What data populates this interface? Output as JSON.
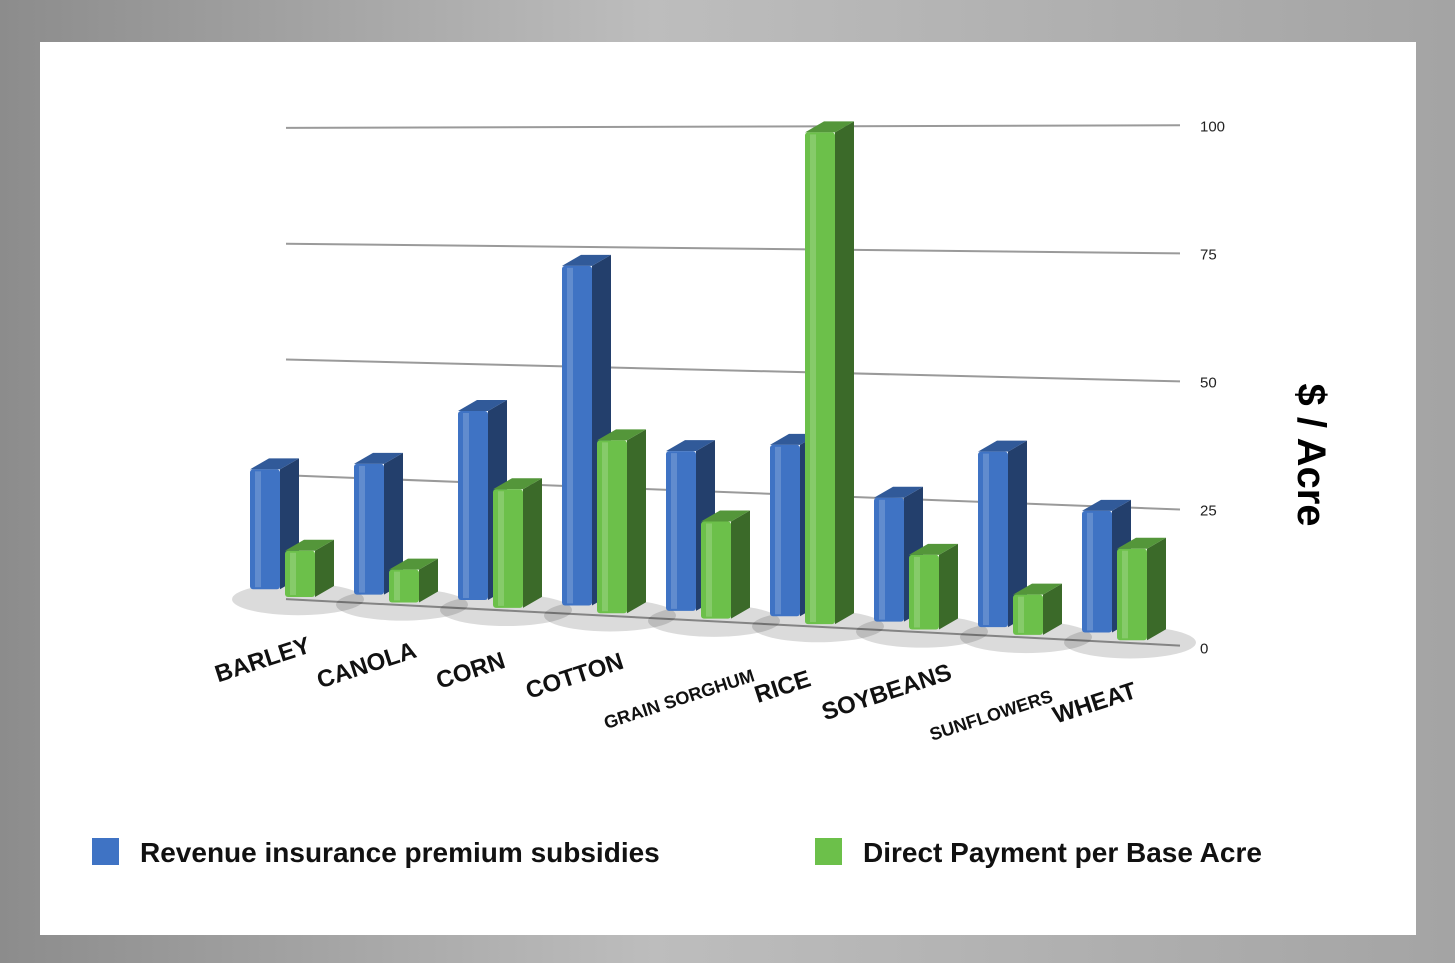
{
  "chart_data": {
    "type": "bar",
    "categories": [
      "BARLEY",
      "CANOLA",
      "CORN",
      "COTTON",
      "GRAIN SORGHUM",
      "RICE",
      "SOYBEANS",
      "SUNFLOWERS",
      "WHEAT"
    ],
    "series": [
      {
        "name": "Revenue insurance premium subsidies",
        "color": "#3f73c4",
        "values": [
          26,
          28,
          40,
          71,
          33,
          35,
          25,
          35,
          24
        ]
      },
      {
        "name": "Direct Payment per Base Acre",
        "color": "#6cc04a",
        "values": [
          10,
          7,
          25,
          36,
          20,
          100,
          15,
          8,
          18
        ]
      }
    ],
    "ylabel": "$ / Acre",
    "ylim": [
      0,
      100
    ],
    "yticks": [
      0,
      25,
      50,
      75,
      100
    ],
    "grid": true,
    "legend": "bottom"
  }
}
